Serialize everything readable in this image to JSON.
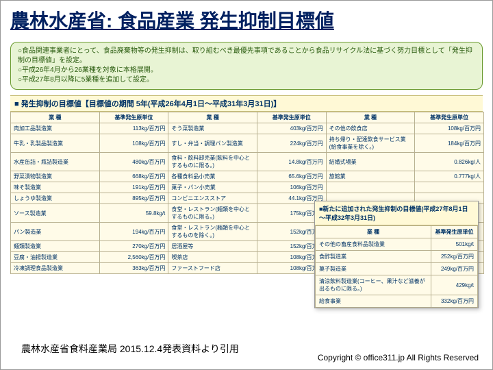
{
  "title": "農林水産省: 食品産業 発生抑制目標値",
  "intro": {
    "line1": "○食品関連事業者にとって、食品廃棄物等の発生抑制は、取り組むべき最優先事項であることから食品リサイクル法に基づく努力目標として「発生抑制の目標値」を設定。",
    "line2": "○平成26年4月から26業種を対象に本格展開。",
    "line3": "○平成27年8月以降に5業種を追加して設定。"
  },
  "main_section": {
    "header": "■ 発生抑制の目標値【目標値の期間 5年(平成26年4月1日～平成31年3月31日)】",
    "columns": {
      "cat": "業 種",
      "val": "基準発生原単位"
    }
  },
  "rows": [
    {
      "c1": "肉加工品製造業",
      "v1": "113kg/百万円",
      "c2": "そう菜製造業",
      "v2": "403kg/百万円",
      "c3": "その他の飲食店",
      "v3": "108kg/百万円"
    },
    {
      "c1": "牛乳・乳製品製造業",
      "v1": "108kg/百万円",
      "c2": "すし・弁当・調理パン製造業",
      "v2": "224kg/百万円",
      "c3": "持ち帰り・配達飲食サービス業(給食事業を除く。)",
      "v3": "184kg/百万円"
    },
    {
      "c1": "水産缶詰・瓶詰製造業",
      "v1": "480kg/百万円",
      "c2": "食料・飲料卸売業(飲料を中心とするものに限る。)",
      "v2": "14.8kg/百万円",
      "c3": "結婚式場業",
      "v3": "0.826kg/人"
    },
    {
      "c1": "野菜漬物製造業",
      "v1": "668kg/百万円",
      "c2": "各種食料品小売業",
      "v2": "65.6kg/百万円",
      "c3": "旅館業",
      "v3": "0.777kg/人"
    },
    {
      "c1": "味そ製造業",
      "v1": "191kg/百万円",
      "c2": "菓子・パン小売業",
      "v2": "106kg/百万円",
      "c3": "",
      "v3": ""
    },
    {
      "c1": "しょうゆ製造業",
      "v1": "895kg/百万円",
      "c2": "コンビニエンスストア",
      "v2": "44.1kg/百万円",
      "c3": "",
      "v3": ""
    },
    {
      "c1": "ソース製造業",
      "v1": "59.8kg/t",
      "c2": "食堂・レストラン(麺類を中心とするものに限る。)",
      "v2": "175kg/百万円",
      "c3": "",
      "v3": ""
    },
    {
      "c1": "パン製造業",
      "v1": "194kg/百万円",
      "c2": "食堂・レストラン(麺類を中心とするものを除く。)",
      "v2": "152kg/百万円",
      "c3": "",
      "v3": ""
    },
    {
      "c1": "麺類製造業",
      "v1": "270kg/百万円",
      "c2": "居酒屋等",
      "v2": "152kg/百万円",
      "c3": "",
      "v3": ""
    },
    {
      "c1": "豆腐・油揚製造業",
      "v1": "2,560kg/百万円",
      "c2": "喫茶店",
      "v2": "108kg/百万円",
      "c3": "",
      "v3": ""
    },
    {
      "c1": "冷凍調理食品製造業",
      "v1": "363kg/百万円",
      "c2": "ファーストフード店",
      "v2": "108kg/百万円",
      "c3": "",
      "v3": ""
    }
  ],
  "overlay": {
    "header": "■新たに追加された発生抑制の目標値(平成27年8月1日～平成32年3月31日)",
    "columns": {
      "cat": "業 種",
      "val": "基準発生原単位"
    },
    "rows": [
      {
        "c": "その他の畜産食料品製造業",
        "v": "501kg/t"
      },
      {
        "c": "食酢製造業",
        "v": "252kg/百万円"
      },
      {
        "c": "菓子製造業",
        "v": "249kg/百万円"
      },
      {
        "c": "清涼飲料製造業(コーヒー、果汁など滋養が出るものに限る。)",
        "v": "429kg/t"
      },
      {
        "c": "給食事業",
        "v": "332kg/百万円"
      }
    ]
  },
  "source": "農林水産省食料産業局 2015.12.4発表資料より引用",
  "copyright": "Copyright © office311.jp All Rights Reserved",
  "colors": {
    "title_color": "#002060",
    "intro_bg": "#e8f4d4",
    "intro_border": "#6a9a2f",
    "table_bg": "#fffbe8",
    "table_border": "#b8b090",
    "header_bg": "#fff9d6"
  }
}
